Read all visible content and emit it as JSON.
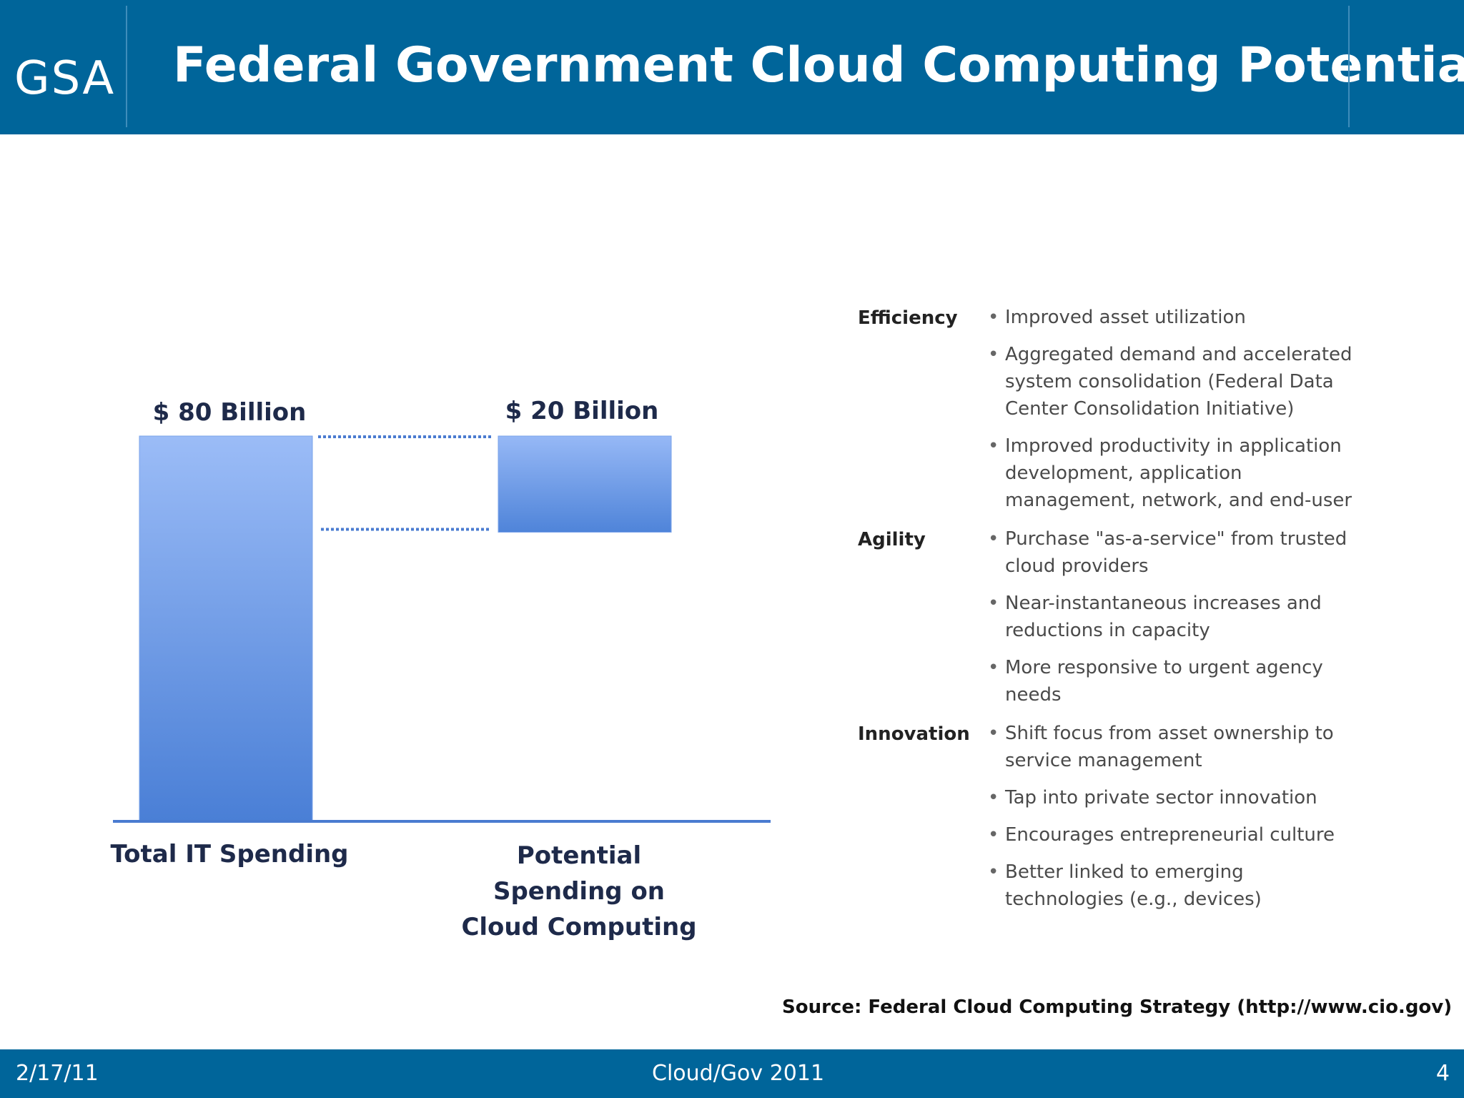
{
  "header": {
    "logo_text": "GSA",
    "title": "Federal Government Cloud Computing Potential"
  },
  "chart_data": {
    "type": "bar",
    "categories": [
      "Total IT Spending",
      "Potential Spending on Cloud Computing"
    ],
    "values": [
      80,
      20
    ],
    "value_labels": [
      "$ 80 Billion",
      "$ 20 Billion"
    ],
    "units": "Billion USD",
    "ylim": [
      0,
      80
    ],
    "second_bar_floating": true,
    "grid": false,
    "legend": "none",
    "colors": {
      "bar_top": "#9bbcf7",
      "bar_bottom": "#4a7fd6",
      "axis": "#4a7bd0",
      "connector": "#4a7bd0"
    }
  },
  "benefits": [
    {
      "label": "Efficiency",
      "items": [
        "Improved asset utilization",
        "Aggregated demand and accelerated system consolidation (Federal Data Center Consolidation Initiative)",
        "Improved productivity in application development, application management, network, and end-user"
      ]
    },
    {
      "label": "Agility",
      "items": [
        "Purchase \"as-a-service\" from trusted cloud providers",
        "Near-instantaneous increases and reductions in capacity",
        "More responsive to urgent agency needs"
      ]
    },
    {
      "label": "Innovation",
      "items": [
        "Shift focus from asset ownership to service management",
        "Tap into private sector innovation",
        "Encourages entrepreneurial culture",
        "Better linked to emerging technologies (e.g., devices)"
      ]
    }
  ],
  "source": "Source:  Federal Cloud Computing Strategy (http://www.cio.gov)",
  "footer": {
    "date": "2/17/11",
    "center": "Cloud/Gov 2011",
    "page": "4"
  }
}
